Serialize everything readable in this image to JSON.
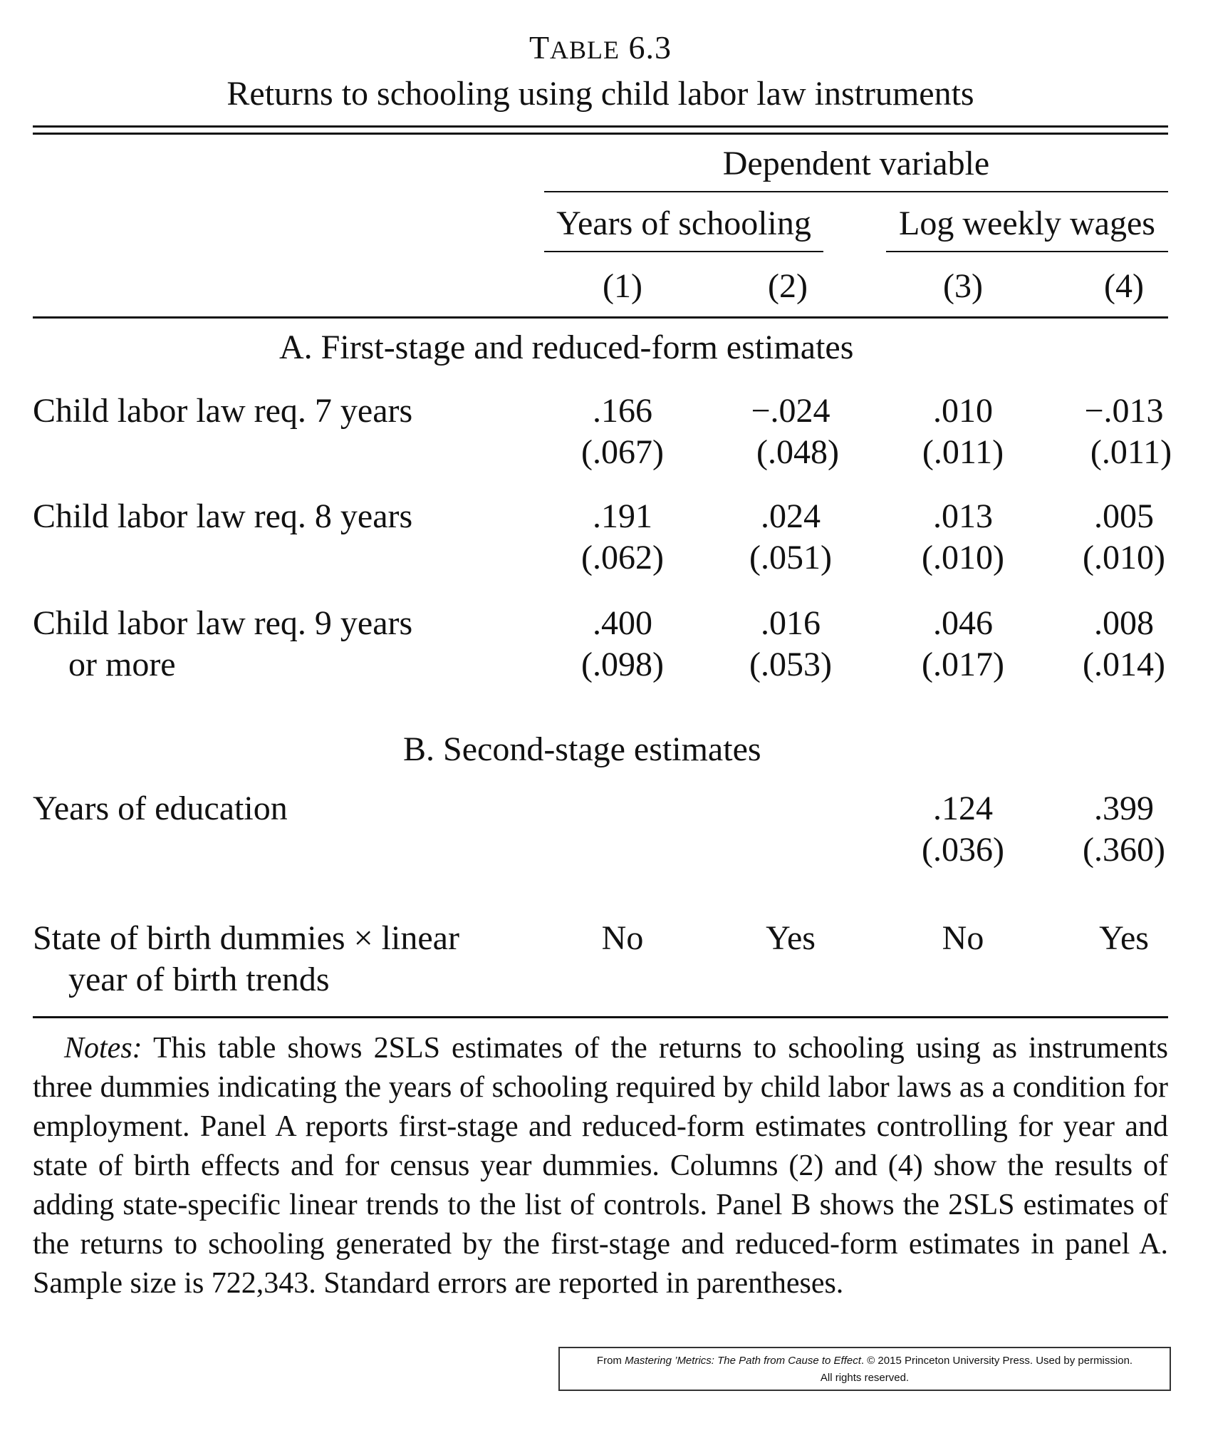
{
  "table": {
    "label": "Table 6.3",
    "caption": "Returns to schooling using child labor law instruments",
    "dependent_variable": "Dependent variable",
    "groups": [
      "Years of schooling",
      "Log weekly wages"
    ],
    "column_numbers": [
      "(1)",
      "(2)",
      "(3)",
      "(4)"
    ],
    "panel_a_title": "A. First-stage and reduced-form estimates",
    "panel_b_title": "B. Second-stage estimates",
    "rows": [
      {
        "label": "Child labor law req. 7 years",
        "label2": "",
        "values": [
          ".166",
          "−.024",
          ".010",
          "−.013"
        ],
        "se": [
          "(.067)",
          "(.048)",
          "(.011)",
          "(.011)"
        ]
      },
      {
        "label": "Child labor law req. 8 years",
        "label2": "",
        "values": [
          ".191",
          ".024",
          ".013",
          ".005"
        ],
        "se": [
          "(.062)",
          "(.051)",
          "(.010)",
          "(.010)"
        ]
      },
      {
        "label": "Child labor law req. 9 years",
        "label2": "or more",
        "values": [
          ".400",
          ".016",
          ".046",
          ".008"
        ],
        "se": [
          "(.098)",
          "(.053)",
          "(.017)",
          "(.014)"
        ]
      }
    ],
    "education_row": {
      "label": "Years of education",
      "values": [
        "",
        "",
        ".124",
        ".399"
      ],
      "se": [
        "",
        "",
        "(.036)",
        "(.360)"
      ]
    },
    "trend_row": {
      "label": "State of birth dummies × linear",
      "label2": "year of birth trends",
      "values": [
        "No",
        "Yes",
        "No",
        "Yes"
      ]
    }
  },
  "notes": {
    "lead": "Notes:",
    "text": " This table shows 2SLS estimates of the returns to schooling using as instruments three dummies indicating the years of schooling required by child labor laws as a condition for employment. Panel A reports first-stage and reduced-form estimates controlling for year and state of birth effects and for census year dummies. Columns (2) and (4) show the results of adding state-specific linear trends to the list of controls. Panel B shows the 2SLS estimates of the returns to schooling generated by the first-stage and reduced-form estimates in panel A. Sample size is 722,343. Standard errors are reported in parentheses."
  },
  "permission": {
    "from": "From ",
    "book": "Mastering ’Metrics: The Path from Cause to Effect",
    "rest": ". © 2015 Princeton University Press. Used by permission.",
    "line2": "All rights reserved."
  }
}
